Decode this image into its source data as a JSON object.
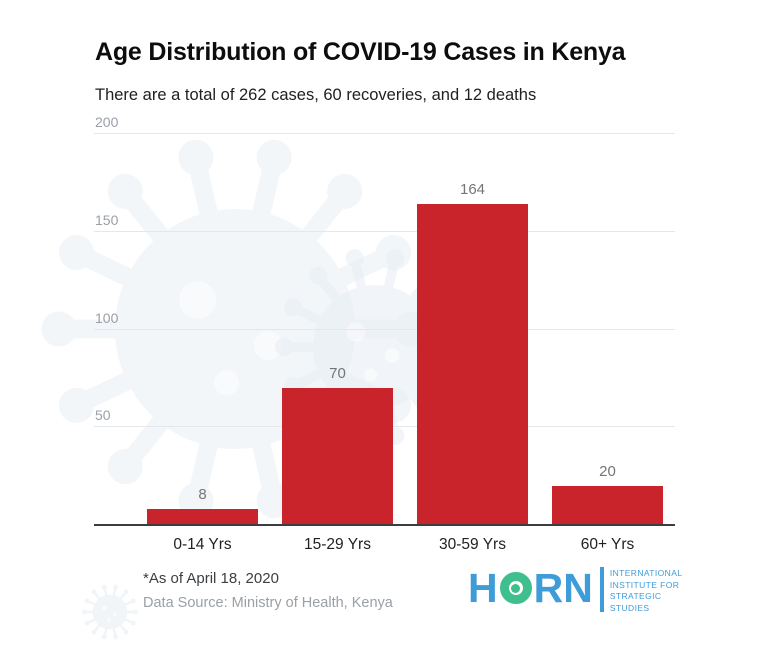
{
  "chart_data": {
    "type": "bar",
    "title": "Age Distribution of COVID-19 Cases in Kenya",
    "subtitle": "There are a total of 262 cases, 60 recoveries, and 12 deaths",
    "categories": [
      "0-14 Yrs",
      "15-29 Yrs",
      "30-59 Yrs",
      "60+ Yrs"
    ],
    "values": [
      8,
      70,
      164,
      20
    ],
    "ylim": [
      0,
      200
    ],
    "yticks": [
      50,
      100,
      150,
      200
    ],
    "grid": true,
    "legend": false,
    "value_labels_shown": true
  },
  "footer": {
    "note": "*As of April 18, 2020",
    "source": "Data Source: Ministry of Health, Kenya"
  },
  "logo": {
    "h": "H",
    "rn": "RN",
    "org_lines": [
      "INTERNATIONAL",
      "INSTITUTE FOR",
      "STRATEGIC",
      "STUDIES"
    ]
  },
  "colors": {
    "bar": "#C9242C",
    "grid": "#E4E8EC",
    "axis": "#3A3E42",
    "tick_label": "#9AA0A6",
    "value_label": "#757575",
    "x_label": "#202124",
    "logo_blue": "#3E9CD9",
    "logo_green": "#3FBF8D",
    "watermark": "#E9EEF4"
  }
}
